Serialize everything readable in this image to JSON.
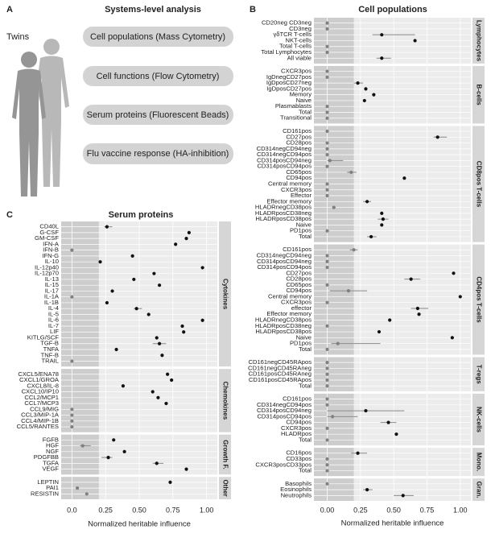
{
  "diagram": {
    "panel": "A",
    "title": "Systems-level analysis",
    "subject": "Twins",
    "boxes": [
      "Cell populations (Mass Cytometry)",
      "Cell functions (Flow Cytometry)",
      "Serum proteins (Fluorescent Beads)",
      "Flu vaccine response (HA-inhibition)"
    ]
  },
  "chart_data": [
    {
      "panel": "B",
      "type": "dot",
      "title": "Cell populations",
      "x_label": "Normalized heritable influence",
      "xlim": [
        -0.1,
        1.08
      ],
      "xticks": [
        {
          "value": 0,
          "label": "0.00"
        },
        {
          "value": 0.25,
          "label": "0.25"
        },
        {
          "value": 0.5,
          "label": "0.50"
        },
        {
          "value": 0.75,
          "label": "0.75"
        },
        {
          "value": 1,
          "label": "1.00"
        }
      ],
      "shade": [
        -0.1,
        0.2
      ],
      "grid": true,
      "colors": {
        "above": "#111111",
        "within": "#808080",
        "interval": "#8a8a8a"
      },
      "groups": [
        {
          "name": "Lymphocytes",
          "categories": [
            "CD20neg CD3neg",
            "CD3neg",
            "γδTCR T-cells",
            "NKT-cells",
            "Total T-cells",
            "Total Lymphocytes",
            "All viable"
          ],
          "values": [
            0,
            0,
            0.41,
            0.66,
            0,
            0,
            0.41
          ],
          "lower": [
            null,
            null,
            0.34,
            null,
            null,
            null,
            0.37
          ],
          "upper": [
            null,
            null,
            0.66,
            null,
            null,
            null,
            0.48
          ]
        },
        {
          "name": "B-cells",
          "categories": [
            "CXCR3pos",
            "IgDnegCD27pos",
            "IgDposCD27neg",
            "IgDposCD27pos",
            "Memory",
            "Naive",
            "Plasmablasts",
            "Total",
            "Transitional"
          ],
          "values": [
            0,
            0,
            0.23,
            0.29,
            0.35,
            0.28,
            0,
            0,
            0
          ],
          "lower": [
            null,
            null,
            0.2,
            null,
            null,
            null,
            null,
            null,
            null
          ],
          "upper": [
            null,
            null,
            0.27,
            null,
            null,
            null,
            null,
            null,
            null
          ]
        },
        {
          "name": "CD8pos T-cells",
          "categories": [
            "CD161pos",
            "CD27pos",
            "CD28pos",
            "CD314negCD94neg",
            "CD314negCD94pos",
            "CD314posCD94neg",
            "CD314posCD94pos",
            "CD65pos",
            "CD94pos",
            "Central memory",
            "CXCR3pos",
            "Effector",
            "Effector memory",
            "HLADRnegCD38pos",
            "HLADRposCD38neg",
            "HLADRposCD38pos",
            "Naive",
            "PD1pos",
            "Total"
          ],
          "values": [
            0,
            0.83,
            0,
            0,
            0,
            0.02,
            0,
            0.18,
            0.58,
            0,
            0,
            0,
            0.3,
            0.05,
            0.41,
            0.42,
            0.41,
            0,
            0.33
          ],
          "lower": [
            null,
            0.8,
            null,
            null,
            null,
            0,
            null,
            0.15,
            null,
            null,
            null,
            null,
            0.27,
            null,
            null,
            0.38,
            null,
            null,
            0.3
          ],
          "upper": [
            null,
            0.9,
            null,
            null,
            null,
            0.12,
            null,
            0.22,
            null,
            null,
            null,
            null,
            0.33,
            null,
            null,
            0.46,
            null,
            null,
            0.37
          ]
        },
        {
          "name": "CD4pos T-cells",
          "categories": [
            "CD161pos",
            "CD314negCD94neg",
            "CD314posCD94neg",
            "CD314posCD94pos",
            "CD27pos",
            "CD28pos",
            "CD65pos",
            "CD94pos",
            "Central memory",
            "CXCR3pos",
            "effector",
            "Effector memory",
            "HLADRnegCD38pos",
            "HLADRposCD38neg",
            "HLADRposCD38pos",
            "Naive",
            "PD1pos",
            "Total"
          ],
          "values": [
            0.2,
            0,
            0,
            0,
            0.95,
            0.63,
            0,
            0.16,
            1,
            0,
            0.68,
            0.69,
            0.47,
            0,
            0.39,
            0.94,
            0.08,
            0
          ],
          "lower": [
            0.17,
            null,
            null,
            null,
            null,
            0.58,
            null,
            0.02,
            null,
            null,
            0.63,
            null,
            null,
            null,
            null,
            null,
            0.03,
            null
          ],
          "upper": [
            0.23,
            null,
            null,
            null,
            null,
            0.7,
            null,
            0.3,
            null,
            null,
            0.76,
            null,
            null,
            null,
            null,
            null,
            0.4,
            null
          ]
        },
        {
          "name": "T-regs",
          "categories": [
            "CD161negCD45RApos",
            "CD161negCD45RAneg",
            "CD161posCD45RAneg",
            "CD161posCD45RApos",
            "Total"
          ],
          "values": [
            0,
            0,
            0,
            0,
            0
          ],
          "lower": [
            null,
            null,
            null,
            null,
            null
          ],
          "upper": [
            null,
            null,
            null,
            null,
            null
          ]
        },
        {
          "name": "NK-cells",
          "categories": [
            "CD161pos",
            "CD314negCD94pos",
            "CD314posCD94neg",
            "CD314posCD94pos",
            "CD94pos",
            "CXCR3pos",
            "HLADRpos",
            "Total"
          ],
          "values": [
            0,
            0,
            0.29,
            0.04,
            0.46,
            0,
            0.52,
            0
          ],
          "lower": [
            null,
            null,
            0,
            0,
            0.4,
            null,
            null,
            null
          ],
          "upper": [
            null,
            null,
            0.58,
            0.23,
            0.52,
            null,
            null,
            null
          ]
        },
        {
          "name": "Mono.",
          "categories": [
            "CD16pos",
            "CD33pos",
            "CXCR3posCD33pos",
            "Total"
          ],
          "values": [
            0.23,
            0,
            0,
            0
          ],
          "lower": [
            0.18,
            null,
            null,
            null
          ],
          "upper": [
            0.3,
            null,
            null,
            null
          ]
        },
        {
          "name": "Gran.",
          "categories": [
            "Basophils",
            "Eosinophils",
            "Neutrophils"
          ],
          "values": [
            0,
            0.3,
            0.57
          ],
          "lower": [
            null,
            0.27,
            0.5
          ],
          "upper": [
            null,
            0.34,
            0.65
          ]
        }
      ]
    },
    {
      "panel": "C",
      "type": "dot",
      "title": "Serum proteins",
      "x_label": "Normalized heritable influence",
      "xlim": [
        -0.08,
        1.08
      ],
      "xticks": [
        {
          "value": 0,
          "label": "0.0"
        },
        {
          "value": 0.25,
          "label": "0.25"
        },
        {
          "value": 0.5,
          "label": "0.50"
        },
        {
          "value": 0.75,
          "label": "0.75"
        },
        {
          "value": 1,
          "label": "1.00"
        }
      ],
      "shade": [
        -0.08,
        0.2
      ],
      "grid": true,
      "colors": {
        "above": "#111111",
        "within": "#808080",
        "interval": "#8a8a8a"
      },
      "groups": [
        {
          "name": "Cytokines",
          "categories": [
            "CD40L",
            "G-CSF",
            "GM-CSF",
            "IFN-A",
            "IFN-B",
            "IFN-G",
            "IL-10",
            "IL-12p40",
            "IL-12p70",
            "IL-13",
            "IL-15",
            "IL-17",
            "IL-1A",
            "IL-1B",
            "IL-4",
            "IL-5",
            "IL-6",
            "IL-7",
            "LIF",
            "KITLG/SCF",
            "TGF-B",
            "TNFA",
            "TNF-B",
            "TRAIL"
          ],
          "values": [
            0.26,
            0.87,
            0.85,
            0.77,
            0,
            0.45,
            0.21,
            0.97,
            0.61,
            0.46,
            0.65,
            0.3,
            0,
            0.26,
            0.48,
            0.57,
            0.97,
            0.82,
            0.83,
            0.63,
            0.65,
            0.33,
            0.67,
            0
          ],
          "lower": [
            0.24,
            null,
            null,
            null,
            null,
            null,
            null,
            null,
            null,
            null,
            null,
            null,
            null,
            null,
            0.46,
            null,
            null,
            null,
            null,
            null,
            0.6,
            null,
            null,
            null
          ],
          "upper": [
            0.3,
            null,
            null,
            null,
            null,
            null,
            null,
            null,
            null,
            null,
            null,
            null,
            null,
            null,
            0.52,
            null,
            null,
            null,
            null,
            null,
            0.7,
            null,
            null,
            null
          ]
        },
        {
          "name": "Chemokines",
          "categories": [
            "CXCL5/ENA78",
            "CXCL1/GROA",
            "CXCL8/IL-8",
            "CXCL10/IP10",
            "CCL2/MCP1",
            "CCL7/MCP3",
            "CCL9/MIG",
            "CCL3/MIP-1A",
            "CCL4/MIP-1B",
            "CCL5/RANTES"
          ],
          "values": [
            0.71,
            0.74,
            0.38,
            0.6,
            0.64,
            0.7,
            0,
            0,
            0,
            0
          ],
          "lower": [
            null,
            null,
            null,
            null,
            null,
            null,
            null,
            null,
            null,
            null
          ],
          "upper": [
            null,
            null,
            null,
            null,
            null,
            null,
            null,
            null,
            null,
            null
          ]
        },
        {
          "name": "Growth F.",
          "categories": [
            "FGFB",
            "HGF",
            "NGF",
            "PDGFBB",
            "TGFA",
            "VEGF"
          ],
          "values": [
            0.31,
            0.08,
            0.39,
            0.27,
            0.63,
            0.85
          ],
          "lower": [
            null,
            0.06,
            null,
            0.22,
            0.6,
            null
          ],
          "upper": [
            null,
            0.14,
            null,
            0.3,
            0.68,
            null
          ]
        },
        {
          "name": "Other",
          "categories": [
            "LEPTIN",
            "PAI1",
            "RESISTIN"
          ],
          "values": [
            0.73,
            0.04,
            0.11
          ],
          "lower": [
            null,
            null,
            null
          ],
          "upper": [
            null,
            null,
            null
          ]
        }
      ]
    }
  ]
}
